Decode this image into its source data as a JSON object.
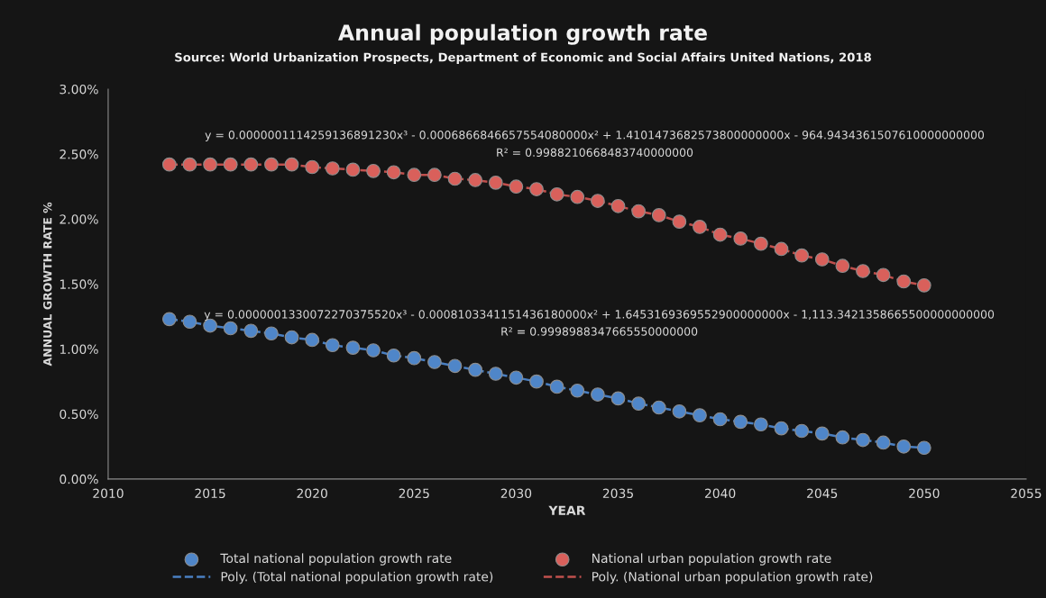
{
  "chart_data": {
    "type": "scatter",
    "title": "Annual population growth rate",
    "subtitle": "Source: World Urbanization Prospects, Department of Economic and Social Affairs United Nations, 2018",
    "xlabel": "YEAR",
    "ylabel": "ANNUAL GROWTH RATE %",
    "x": [
      2013,
      2014,
      2015,
      2016,
      2017,
      2018,
      2019,
      2020,
      2021,
      2022,
      2023,
      2024,
      2025,
      2026,
      2027,
      2028,
      2029,
      2030,
      2031,
      2032,
      2033,
      2034,
      2035,
      2036,
      2037,
      2038,
      2039,
      2040,
      2041,
      2042,
      2043,
      2044,
      2045,
      2046,
      2047,
      2048,
      2049,
      2050
    ],
    "series": [
      {
        "name": "Total national population growth rate",
        "color": "#4f86c9",
        "values": [
          1.23,
          1.21,
          1.18,
          1.16,
          1.14,
          1.12,
          1.09,
          1.07,
          1.03,
          1.01,
          0.99,
          0.95,
          0.93,
          0.9,
          0.87,
          0.84,
          0.81,
          0.78,
          0.75,
          0.71,
          0.68,
          0.65,
          0.62,
          0.58,
          0.55,
          0.52,
          0.49,
          0.46,
          0.44,
          0.42,
          0.39,
          0.37,
          0.35,
          0.32,
          0.3,
          0.28,
          0.25,
          0.24
        ]
      },
      {
        "name": "Poly. (Total national population growth rate)",
        "type": "line",
        "line_style": "dashed",
        "marker": "none",
        "color": "#4a7fc1",
        "x": [
          2013,
          2014,
          2015,
          2016,
          2017,
          2018,
          2019,
          2020,
          2021,
          2022,
          2023,
          2024,
          2025,
          2026,
          2027,
          2028,
          2029,
          2030,
          2031,
          2032,
          2033,
          2034,
          2035,
          2036,
          2037,
          2038,
          2039,
          2040,
          2041,
          2042,
          2043,
          2044,
          2045,
          2046,
          2047,
          2048,
          2049,
          2050
        ],
        "values": [
          1.23,
          1.21,
          1.18,
          1.16,
          1.14,
          1.12,
          1.09,
          1.07,
          1.03,
          1.01,
          0.99,
          0.95,
          0.93,
          0.9,
          0.87,
          0.84,
          0.81,
          0.78,
          0.75,
          0.71,
          0.68,
          0.65,
          0.62,
          0.58,
          0.55,
          0.52,
          0.49,
          0.46,
          0.44,
          0.42,
          0.39,
          0.37,
          0.35,
          0.32,
          0.3,
          0.28,
          0.25,
          0.24
        ]
      },
      {
        "name": "National urban population growth rate",
        "color": "#d9605b",
        "values": [
          2.42,
          2.42,
          2.42,
          2.42,
          2.42,
          2.42,
          2.42,
          2.4,
          2.39,
          2.38,
          2.37,
          2.36,
          2.34,
          2.34,
          2.31,
          2.3,
          2.28,
          2.25,
          2.23,
          2.19,
          2.17,
          2.14,
          2.1,
          2.06,
          2.03,
          1.98,
          1.94,
          1.88,
          1.85,
          1.81,
          1.77,
          1.72,
          1.69,
          1.64,
          1.6,
          1.57,
          1.52,
          1.49
        ]
      },
      {
        "name": "Poly. (National urban population growth rate)",
        "type": "line",
        "line_style": "dashed",
        "marker": "none",
        "color": "#c0504d",
        "x": [
          2013,
          2014,
          2015,
          2016,
          2017,
          2018,
          2019,
          2020,
          2021,
          2022,
          2023,
          2024,
          2025,
          2026,
          2027,
          2028,
          2029,
          2030,
          2031,
          2032,
          2033,
          2034,
          2035,
          2036,
          2037,
          2038,
          2039,
          2040,
          2041,
          2042,
          2043,
          2044,
          2045,
          2046,
          2047,
          2048,
          2049,
          2050
        ],
        "values": [
          2.42,
          2.42,
          2.42,
          2.42,
          2.42,
          2.42,
          2.42,
          2.4,
          2.39,
          2.38,
          2.37,
          2.36,
          2.34,
          2.34,
          2.31,
          2.3,
          2.28,
          2.25,
          2.23,
          2.19,
          2.17,
          2.14,
          2.1,
          2.06,
          2.03,
          1.98,
          1.94,
          1.88,
          1.85,
          1.81,
          1.77,
          1.72,
          1.69,
          1.64,
          1.6,
          1.57,
          1.52,
          1.49
        ]
      }
    ],
    "marker": "circle",
    "xlim": [
      2010,
      2055
    ],
    "xticks": [
      2010,
      2015,
      2020,
      2025,
      2030,
      2035,
      2040,
      2045,
      2050,
      2055
    ],
    "ylim": [
      0,
      3
    ],
    "yticks": [
      {
        "value": 0,
        "label": "0.00%"
      },
      {
        "value": 0.5,
        "label": "0.50%"
      },
      {
        "value": 1,
        "label": "1.00%"
      },
      {
        "value": 1.5,
        "label": "1.50%"
      },
      {
        "value": 2,
        "label": "2.00%"
      },
      {
        "value": 2.5,
        "label": "2.50%"
      },
      {
        "value": 3,
        "label": "3.00%"
      }
    ],
    "annotations": [
      "y = 0.0000001114259136891230x³ - 0.0006866846657554080000x² + 1.4101473682573800000000x - 964.9434361507610000000000",
      "R² = 0.9988210668483740000000",
      "y = 0.0000001330072270375520x³ - 0.0008103341151436180000x² + 1.6453169369552900000000x - 1,113.3421358665500000000000",
      "R² = 0.9998988347665550000000"
    ],
    "grid": false,
    "legend": "bottom"
  }
}
